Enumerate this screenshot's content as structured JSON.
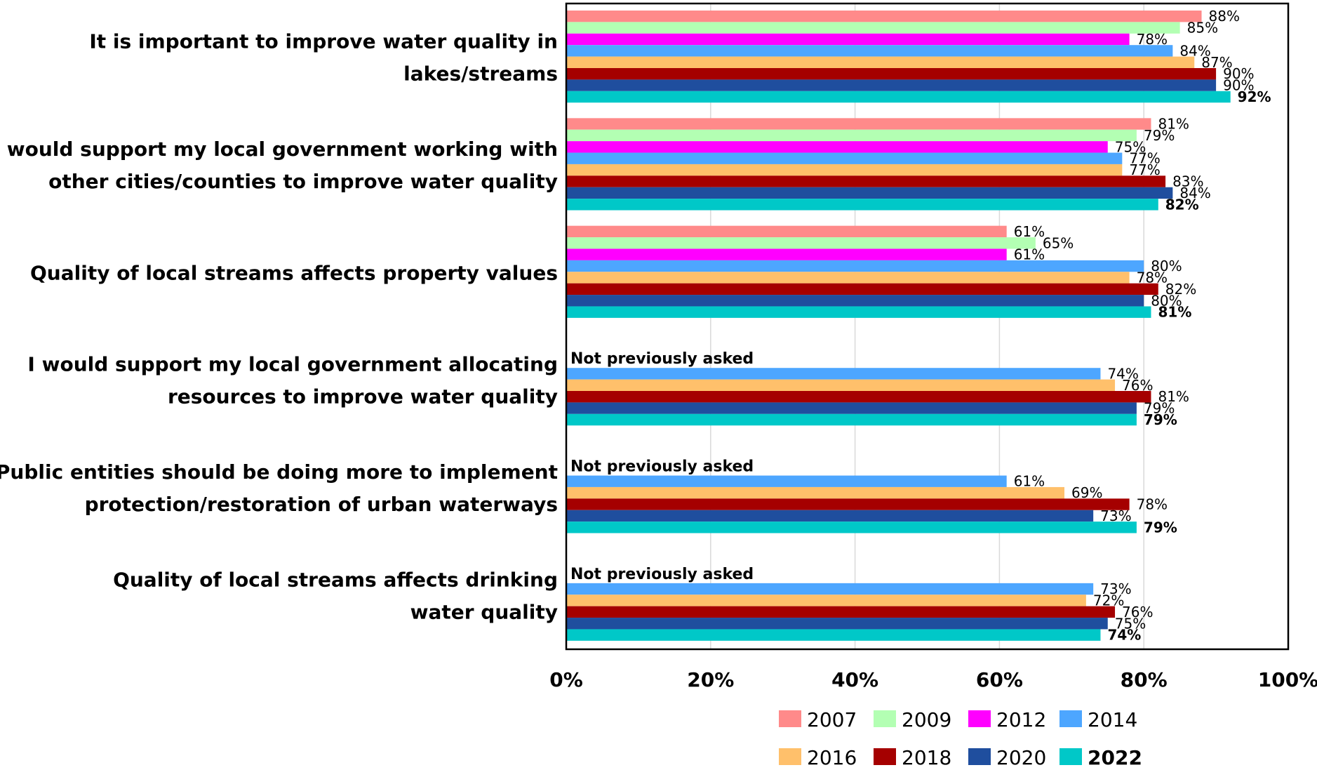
{
  "chart_data": {
    "type": "bar",
    "orientation": "horizontal",
    "categories": [
      "It is important to improve water quality in lakes/streams",
      "I would support my local government working with other cities/counties to improve water quality",
      "Quality of local streams affects property values",
      "I would support my local government allocating resources to improve water quality",
      "Public entities should be doing more to implement protection/restoration of urban waterways",
      "Quality of local streams affects drinking water quality"
    ],
    "category_label_lines": [
      [
        "It is important to improve water quality in",
        "lakes/streams"
      ],
      [
        "I would support my local government working with",
        "other cities/counties to improve water quality"
      ],
      [
        "Quality of local streams affects property values"
      ],
      [
        "I would support my local government allocating",
        "resources to improve water quality"
      ],
      [
        "Public entities should be doing more to implement",
        "protection/restoration of urban waterways"
      ],
      [
        "Quality of local streams affects drinking",
        "water quality"
      ]
    ],
    "series": [
      {
        "name": "2007",
        "color": "#FF8A8A",
        "values": [
          88,
          81,
          61,
          null,
          null,
          null
        ]
      },
      {
        "name": "2009",
        "color": "#B3FFB3",
        "values": [
          85,
          79,
          65,
          null,
          null,
          null
        ]
      },
      {
        "name": "2012",
        "color": "#FF00FF",
        "values": [
          78,
          75,
          61,
          null,
          null,
          null
        ]
      },
      {
        "name": "2014",
        "color": "#4DA6FF",
        "values": [
          84,
          77,
          80,
          74,
          61,
          73
        ]
      },
      {
        "name": "2016",
        "color": "#FFC06B",
        "values": [
          87,
          77,
          78,
          76,
          69,
          72
        ]
      },
      {
        "name": "2018",
        "color": "#A50000",
        "values": [
          90,
          83,
          82,
          81,
          78,
          76
        ]
      },
      {
        "name": "2020",
        "color": "#1F4E9E",
        "values": [
          90,
          84,
          80,
          79,
          73,
          75
        ]
      },
      {
        "name": "2022",
        "color": "#00C8C8",
        "values": [
          92,
          82,
          81,
          79,
          79,
          74
        ],
        "bold": true
      }
    ],
    "value_suffix": "%",
    "not_asked_text": "Not previously asked",
    "not_asked_categories": [
      3,
      4,
      5
    ],
    "xlim": [
      0,
      100
    ],
    "xticks": [
      0,
      20,
      40,
      60,
      80,
      100
    ],
    "xtick_labels": [
      "0%",
      "20%",
      "40%",
      "60%",
      "80%",
      "100%"
    ],
    "grid": "vertical",
    "legend": "bottom",
    "title": "",
    "xlabel": "",
    "ylabel": ""
  }
}
